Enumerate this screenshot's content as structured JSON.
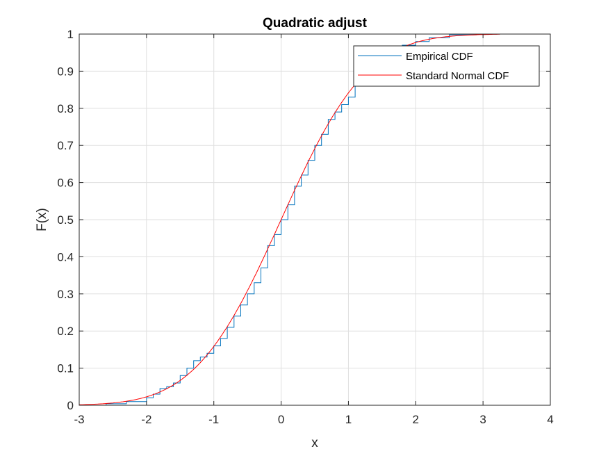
{
  "chart_data": {
    "type": "line",
    "title": "Quadratic adjust",
    "xlabel": "x",
    "ylabel": "F(x)",
    "xlim": [
      -3,
      4
    ],
    "ylim": [
      0,
      1
    ],
    "xticks": [
      -3,
      -2,
      -1,
      0,
      1,
      2,
      3,
      4
    ],
    "yticks": [
      0,
      0.1,
      0.2,
      0.3,
      0.4,
      0.5,
      0.6,
      0.7,
      0.8,
      0.9,
      1
    ],
    "grid": true,
    "legend_position": "top-right",
    "series": [
      {
        "name": "Empirical CDF",
        "color": "#0072BD",
        "x": [
          -2.95,
          -2.6,
          -2.3,
          -2.0,
          -1.9,
          -1.8,
          -1.7,
          -1.6,
          -1.5,
          -1.4,
          -1.3,
          -1.2,
          -1.1,
          -1.0,
          -0.9,
          -0.8,
          -0.7,
          -0.6,
          -0.5,
          -0.4,
          -0.3,
          -0.2,
          -0.1,
          0.0,
          0.1,
          0.2,
          0.3,
          0.4,
          0.5,
          0.6,
          0.7,
          0.8,
          0.9,
          1.0,
          1.1,
          1.2,
          1.4,
          1.6,
          1.8,
          2.0,
          2.2,
          2.5,
          2.9
        ],
        "y": [
          0.0,
          0.004,
          0.01,
          0.02,
          0.03,
          0.045,
          0.05,
          0.06,
          0.08,
          0.1,
          0.12,
          0.13,
          0.14,
          0.16,
          0.18,
          0.21,
          0.24,
          0.27,
          0.3,
          0.33,
          0.37,
          0.43,
          0.46,
          0.5,
          0.54,
          0.59,
          0.62,
          0.66,
          0.7,
          0.73,
          0.77,
          0.79,
          0.81,
          0.83,
          0.86,
          0.87,
          0.91,
          0.94,
          0.97,
          0.98,
          0.99,
          0.998,
          1.0
        ]
      },
      {
        "name": "Standard Normal CDF",
        "color": "#FF0000",
        "function": "standard_normal_cdf",
        "x_range": [
          -3,
          3.25
        ]
      }
    ]
  }
}
